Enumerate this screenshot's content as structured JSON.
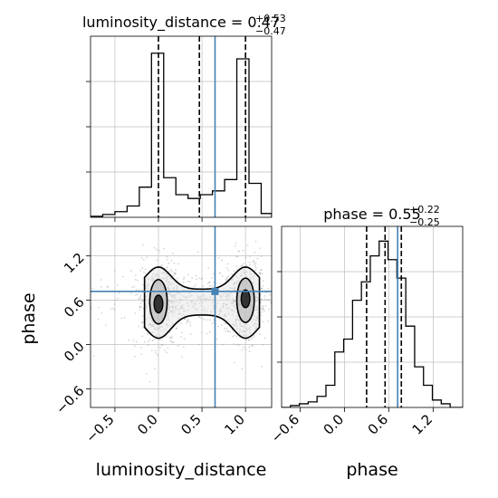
{
  "chart_data": {
    "type": "corner",
    "colors": {
      "truth": "#4682b4",
      "hist": "#000000",
      "quantile": "#000000",
      "grid": "#bfbfbf",
      "samples": "#888888"
    },
    "parameters": [
      {
        "name": "luminosity_distance",
        "axis_label": "luminosity_distance",
        "title_prefix": "luminosity_distance = 0.47",
        "title_sup": "+0.53",
        "title_sub": "−0.47",
        "truth": 0.65,
        "quantiles": [
          0.0,
          0.47,
          1.0
        ],
        "range": [
          -0.78,
          1.3
        ],
        "ticks": [
          -0.5,
          0.0,
          0.5,
          1.0
        ],
        "tick_labels": [
          "−0.5",
          "0.0",
          "0.5",
          "1.0"
        ],
        "hist_edges": [
          -0.78,
          -0.64,
          -0.5,
          -0.36,
          -0.22,
          -0.08,
          0.06,
          0.2,
          0.34,
          0.48,
          0.62,
          0.76,
          0.9,
          1.04,
          1.18,
          1.3
        ],
        "hist_counts": [
          0.005,
          0.015,
          0.03,
          0.06,
          0.16,
          0.87,
          0.21,
          0.12,
          0.1,
          0.12,
          0.14,
          0.2,
          0.84,
          0.18,
          0.02
        ],
        "hist_max": 0.96
      },
      {
        "name": "phase",
        "axis_label": "phase",
        "title_prefix": "phase = 0.55",
        "title_sup": "+0.22",
        "title_sub": "−0.25",
        "truth": 0.72,
        "quantiles": [
          0.3,
          0.55,
          0.77
        ],
        "range": [
          -0.85,
          1.6
        ],
        "ticks": [
          -0.6,
          0.0,
          0.6,
          1.2
        ],
        "tick_labels": [
          "−0.6",
          "0.0",
          "0.6",
          "1.2"
        ],
        "hist_edges": [
          -0.85,
          -0.73,
          -0.61,
          -0.49,
          -0.37,
          -0.25,
          -0.13,
          -0.01,
          0.11,
          0.23,
          0.35,
          0.47,
          0.59,
          0.71,
          0.83,
          0.95,
          1.07,
          1.19,
          1.31,
          1.43,
          1.6
        ],
        "hist_counts": [
          0.0,
          0.01,
          0.02,
          0.03,
          0.06,
          0.12,
          0.3,
          0.37,
          0.58,
          0.68,
          0.82,
          0.9,
          0.8,
          0.7,
          0.44,
          0.22,
          0.12,
          0.04,
          0.02,
          0.0
        ],
        "hist_max": 0.98
      }
    ],
    "density_2d": {
      "x_param": "luminosity_distance",
      "y_param": "phase",
      "truth": [
        0.65,
        0.72
      ],
      "modes": [
        [
          0.0,
          0.55
        ],
        [
          1.0,
          0.6
        ]
      ],
      "grid": true
    }
  }
}
